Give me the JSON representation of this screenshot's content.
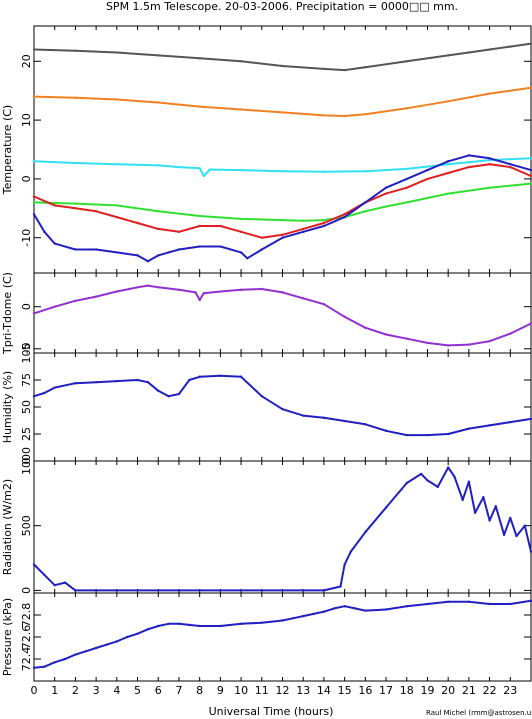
{
  "page": {
    "title": "SPM 1.5m Telescope. 20-03-2006. Precipitation = 0000□□ mm.",
    "x_axis_label": "Universal Time (hours)",
    "credit": "Raul Michel (rmm@astrosen.unam.mx)"
  },
  "chart_data": [
    {
      "type": "line",
      "ylabel": "Temperature (C)",
      "ylim": [
        -16,
        26
      ],
      "yticks": [
        -10,
        0,
        10,
        20
      ],
      "xlim": [
        0,
        24
      ],
      "xticks": [
        0,
        1,
        2,
        3,
        4,
        5,
        6,
        7,
        8,
        9,
        10,
        11,
        12,
        13,
        14,
        15,
        16,
        17,
        18,
        19,
        20,
        21,
        22,
        23
      ],
      "series": [
        {
          "color": "#555555",
          "x": [
            0,
            2,
            4,
            6,
            8,
            10,
            12,
            14,
            15,
            16,
            18,
            20,
            21,
            22,
            23,
            24
          ],
          "y": [
            22,
            21.8,
            21.5,
            21,
            20.5,
            20,
            19.2,
            18.7,
            18.5,
            19,
            20,
            21,
            21.5,
            22,
            22.5,
            23
          ]
        },
        {
          "color": "#f08020",
          "x": [
            0,
            2,
            4,
            6,
            8,
            10,
            12,
            14,
            15,
            16,
            18,
            20,
            22,
            24
          ],
          "y": [
            14,
            13.8,
            13.5,
            13,
            12.3,
            11.8,
            11.3,
            10.8,
            10.7,
            11,
            12,
            13.2,
            14.5,
            15.5
          ]
        },
        {
          "color": "#30e0f0",
          "x": [
            0,
            2,
            4,
            6,
            7,
            8,
            8.2,
            8.5,
            10,
            12,
            14,
            16,
            18,
            20,
            22,
            24
          ],
          "y": [
            3,
            2.7,
            2.5,
            2.3,
            2,
            1.8,
            0.5,
            1.6,
            1.5,
            1.3,
            1.2,
            1.3,
            1.7,
            2.5,
            3.2,
            3.5
          ]
        },
        {
          "color": "#30e030",
          "x": [
            0,
            2,
            4,
            6,
            8,
            10,
            12,
            13,
            14,
            15,
            16,
            17,
            18,
            20,
            22,
            24
          ],
          "y": [
            -4,
            -4.2,
            -4.5,
            -5.5,
            -6.3,
            -6.8,
            -7,
            -7.1,
            -7,
            -6.5,
            -5.5,
            -4.7,
            -4,
            -2.5,
            -1.5,
            -0.8
          ]
        },
        {
          "color": "#e02020",
          "x": [
            0,
            1,
            2,
            3,
            4,
            5,
            6,
            7,
            8,
            9,
            10,
            11,
            12,
            13,
            14,
            15,
            16,
            17,
            18,
            19,
            20,
            21,
            22,
            23,
            24
          ],
          "y": [
            -3,
            -4.5,
            -5,
            -5.5,
            -6.5,
            -7.5,
            -8.5,
            -9,
            -8,
            -8,
            -9,
            -10,
            -9.5,
            -8.5,
            -7.5,
            -6,
            -4,
            -2.5,
            -1.5,
            0,
            1,
            2,
            2.5,
            2,
            0.5
          ]
        },
        {
          "color": "#2020c0",
          "x": [
            0,
            0.5,
            1,
            2,
            3,
            4,
            5,
            5.5,
            6,
            6.5,
            7,
            8,
            9,
            10,
            10.3,
            11,
            12,
            13,
            14,
            15,
            16,
            17,
            18,
            19,
            20,
            21,
            22,
            23,
            24
          ],
          "y": [
            -6,
            -9,
            -11,
            -12,
            -12,
            -12.5,
            -13,
            -14,
            -13,
            -12.5,
            -12,
            -11.5,
            -11.5,
            -12.5,
            -13.5,
            -12,
            -10,
            -9,
            -8,
            -6.5,
            -4,
            -1.5,
            0,
            1.5,
            3,
            4,
            3.5,
            2.5,
            1.5
          ]
        }
      ]
    },
    {
      "type": "line",
      "ylabel": "Tpri-Tdome (C)",
      "ylim": [
        -5.5,
        4
      ],
      "yticks": [
        -5,
        0
      ],
      "xlim": [
        0,
        24
      ],
      "series": [
        {
          "color": "#9030d0",
          "x": [
            0,
            1,
            2,
            3,
            4,
            5,
            5.5,
            6,
            7,
            7.8,
            8,
            8.2,
            9,
            10,
            11,
            12,
            13,
            14,
            15,
            16,
            17,
            18,
            19,
            20,
            21,
            22,
            23,
            24
          ],
          "y": [
            -0.8,
            0,
            0.7,
            1.2,
            1.8,
            2.3,
            2.5,
            2.3,
            2,
            1.7,
            0.8,
            1.6,
            1.8,
            2,
            2.1,
            1.7,
            1,
            0.3,
            -1.2,
            -2.5,
            -3.3,
            -3.8,
            -4.3,
            -4.6,
            -4.5,
            -4.1,
            -3.2,
            -2
          ]
        }
      ]
    },
    {
      "type": "line",
      "ylabel": "Humidity (%)",
      "ylim": [
        0,
        100
      ],
      "yticks": [
        0,
        25,
        50,
        75,
        100
      ],
      "xlim": [
        0,
        24
      ],
      "series": [
        {
          "color": "#2020c0",
          "x": [
            0,
            0.5,
            1,
            2,
            3,
            4,
            5,
            5.5,
            6,
            6.5,
            7,
            7.5,
            8,
            9,
            10,
            11,
            12,
            13,
            14,
            15,
            16,
            17,
            18,
            19,
            20,
            21,
            22,
            23,
            24
          ],
          "y": [
            60,
            63,
            68,
            72,
            73,
            74,
            75,
            73,
            65,
            60,
            62,
            75,
            78,
            79,
            78,
            60,
            48,
            42,
            40,
            37,
            34,
            28,
            24,
            24,
            25,
            30,
            33,
            36,
            39
          ]
        }
      ]
    },
    {
      "type": "line",
      "ylabel": "Radiation (W/m2)",
      "ylim": [
        -20,
        1000
      ],
      "yticks": [
        0,
        500,
        1000
      ],
      "xlim": [
        0,
        24
      ],
      "series": [
        {
          "color": "#2020c0",
          "x": [
            0,
            0.5,
            1,
            1.5,
            2,
            3,
            5,
            10,
            14,
            14.8,
            15,
            15.3,
            16,
            17,
            18,
            18.7,
            19,
            19.5,
            20,
            20.3,
            20.7,
            21,
            21.3,
            21.7,
            22,
            22.3,
            22.7,
            23,
            23.3,
            23.7,
            24
          ],
          "y": [
            200,
            120,
            40,
            60,
            0,
            0,
            0,
            0,
            0,
            30,
            200,
            300,
            450,
            640,
            830,
            900,
            850,
            800,
            950,
            880,
            700,
            840,
            600,
            720,
            540,
            650,
            430,
            560,
            420,
            500,
            300
          ]
        }
      ]
    },
    {
      "type": "line",
      "ylabel": "Pressure (kPa)",
      "ylim": [
        72.2,
        73
      ],
      "yticks": [
        72.4,
        72.6,
        72.8
      ],
      "xlim": [
        0,
        24
      ],
      "series": [
        {
          "color": "#2020c0",
          "x": [
            0,
            0.5,
            1,
            1.5,
            2,
            2.5,
            3,
            3.5,
            4,
            4.5,
            5,
            5.5,
            6,
            6.5,
            7,
            7.5,
            8,
            9,
            10,
            11,
            12,
            12.5,
            13,
            13.5,
            14,
            14.5,
            15,
            15.5,
            16,
            17,
            18,
            19,
            20,
            21,
            22,
            23,
            24
          ],
          "y": [
            72.32,
            72.33,
            72.37,
            72.4,
            72.44,
            72.47,
            72.5,
            72.53,
            72.56,
            72.6,
            72.63,
            72.67,
            72.7,
            72.72,
            72.72,
            72.71,
            72.7,
            72.7,
            72.72,
            72.73,
            72.75,
            72.77,
            72.79,
            72.81,
            72.83,
            72.86,
            72.88,
            72.86,
            72.84,
            72.85,
            72.88,
            72.9,
            72.92,
            72.92,
            72.9,
            72.9,
            72.93
          ]
        }
      ]
    }
  ]
}
